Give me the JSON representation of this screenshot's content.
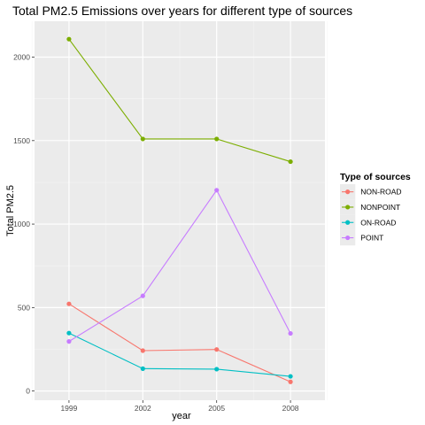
{
  "chart_data": {
    "type": "line",
    "title": "Total PM2.5 Emissions over years for different type of sources",
    "xlabel": "year",
    "ylabel": "Total PM2.5",
    "x": [
      1999,
      2002,
      2005,
      2008
    ],
    "x_tick_labels": [
      "1999",
      "2002",
      "2005",
      "2008"
    ],
    "y_ticks": [
      0,
      500,
      1000,
      1500,
      2000
    ],
    "y_tick_labels": [
      "0",
      "500",
      "1000",
      "1500",
      "2000"
    ],
    "xlim": [
      1997.6,
      2009.4
    ],
    "ylim": [
      -55,
      2215
    ],
    "grid": true,
    "legend": {
      "title": "Type of sources",
      "position": "right"
    },
    "series": [
      {
        "name": "NON-ROAD",
        "color": "#F8766D",
        "values": [
          522,
          242,
          249,
          55
        ]
      },
      {
        "name": "NONPOINT",
        "color": "#7CAE00",
        "values": [
          2108,
          1510,
          1510,
          1374
        ]
      },
      {
        "name": "ON-ROAD",
        "color": "#00BFC4",
        "values": [
          347,
          134,
          131,
          88
        ]
      },
      {
        "name": "POINT",
        "color": "#C77CFF",
        "values": [
          297,
          570,
          1203,
          345
        ]
      }
    ]
  }
}
